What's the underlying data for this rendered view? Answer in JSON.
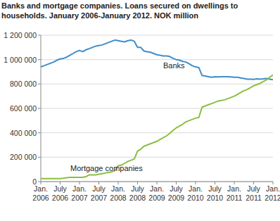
{
  "chart_data": {
    "type": "line",
    "title": "Banks and mortgage companies. Loans secured on dwellings to households. January 2006-January 2012. NOK million",
    "categories": [
      "Jan. 2006",
      null,
      null,
      null,
      null,
      null,
      "July 2006",
      null,
      null,
      null,
      null,
      null,
      "Jan. 2007",
      null,
      null,
      null,
      null,
      null,
      "July 2007",
      null,
      null,
      null,
      null,
      null,
      "Jan. 2008",
      null,
      null,
      null,
      null,
      null,
      "July 2008",
      null,
      null,
      null,
      null,
      null,
      "Jan. 2009",
      null,
      null,
      null,
      null,
      null,
      "July 2009",
      null,
      null,
      null,
      null,
      null,
      "Jan. 2010",
      null,
      null,
      null,
      null,
      null,
      "July 2010",
      null,
      null,
      null,
      null,
      null,
      "Jan. 2011",
      null,
      null,
      null,
      null,
      null,
      "July 2011",
      null,
      null,
      null,
      null,
      null,
      "Jan. 2012"
    ],
    "series": [
      {
        "name": "Banks",
        "color": "#3d8ec9",
        "values": [
          940000,
          950000,
          960000,
          970000,
          980000,
          995000,
          1005000,
          1010000,
          1020000,
          1035000,
          1050000,
          1065000,
          1075000,
          1065000,
          1080000,
          1090000,
          1100000,
          1110000,
          1115000,
          1120000,
          1130000,
          1140000,
          1150000,
          1160000,
          1155000,
          1150000,
          1145000,
          1155000,
          1160000,
          1150000,
          1100000,
          1100000,
          1070000,
          1065000,
          1060000,
          1050000,
          1040000,
          1035000,
          1030000,
          1030000,
          1025000,
          1010000,
          1000000,
          995000,
          985000,
          980000,
          965000,
          950000,
          940000,
          935000,
          870000,
          865000,
          860000,
          855000,
          860000,
          858000,
          860000,
          860000,
          860000,
          858000,
          855000,
          855000,
          850000,
          845000,
          840000,
          840000,
          838000,
          842000,
          840000,
          842000,
          845000,
          840000,
          835000
        ]
      },
      {
        "name": "Mortgage companies",
        "color": "#8bbf3f",
        "values": [
          25000,
          25000,
          25000,
          25000,
          25000,
          25000,
          25000,
          28000,
          32000,
          35000,
          35000,
          35000,
          35000,
          35000,
          40000,
          55000,
          55000,
          55000,
          60000,
          65000,
          70000,
          75000,
          80000,
          90000,
          130000,
          135000,
          150000,
          165000,
          175000,
          185000,
          250000,
          265000,
          290000,
          300000,
          310000,
          320000,
          330000,
          345000,
          360000,
          375000,
          395000,
          420000,
          440000,
          455000,
          470000,
          490000,
          500000,
          510000,
          520000,
          525000,
          610000,
          620000,
          630000,
          640000,
          650000,
          660000,
          665000,
          670000,
          680000,
          690000,
          700000,
          715000,
          730000,
          745000,
          755000,
          770000,
          785000,
          795000,
          805000,
          820000,
          835000,
          855000,
          875000
        ]
      }
    ],
    "ylim": [
      0,
      1200000
    ],
    "yticks": [
      0,
      {
        "value": 200000,
        "label": "200 000"
      },
      {
        "value": 400000,
        "label": "400 000"
      },
      {
        "value": 600000,
        "label": "600 000"
      },
      {
        "value": 800000,
        "label": "800 000"
      },
      {
        "value": 1000000,
        "label": "1 000 000"
      },
      {
        "value": 1200000,
        "label": "1 200 000"
      }
    ],
    "grid": true
  }
}
